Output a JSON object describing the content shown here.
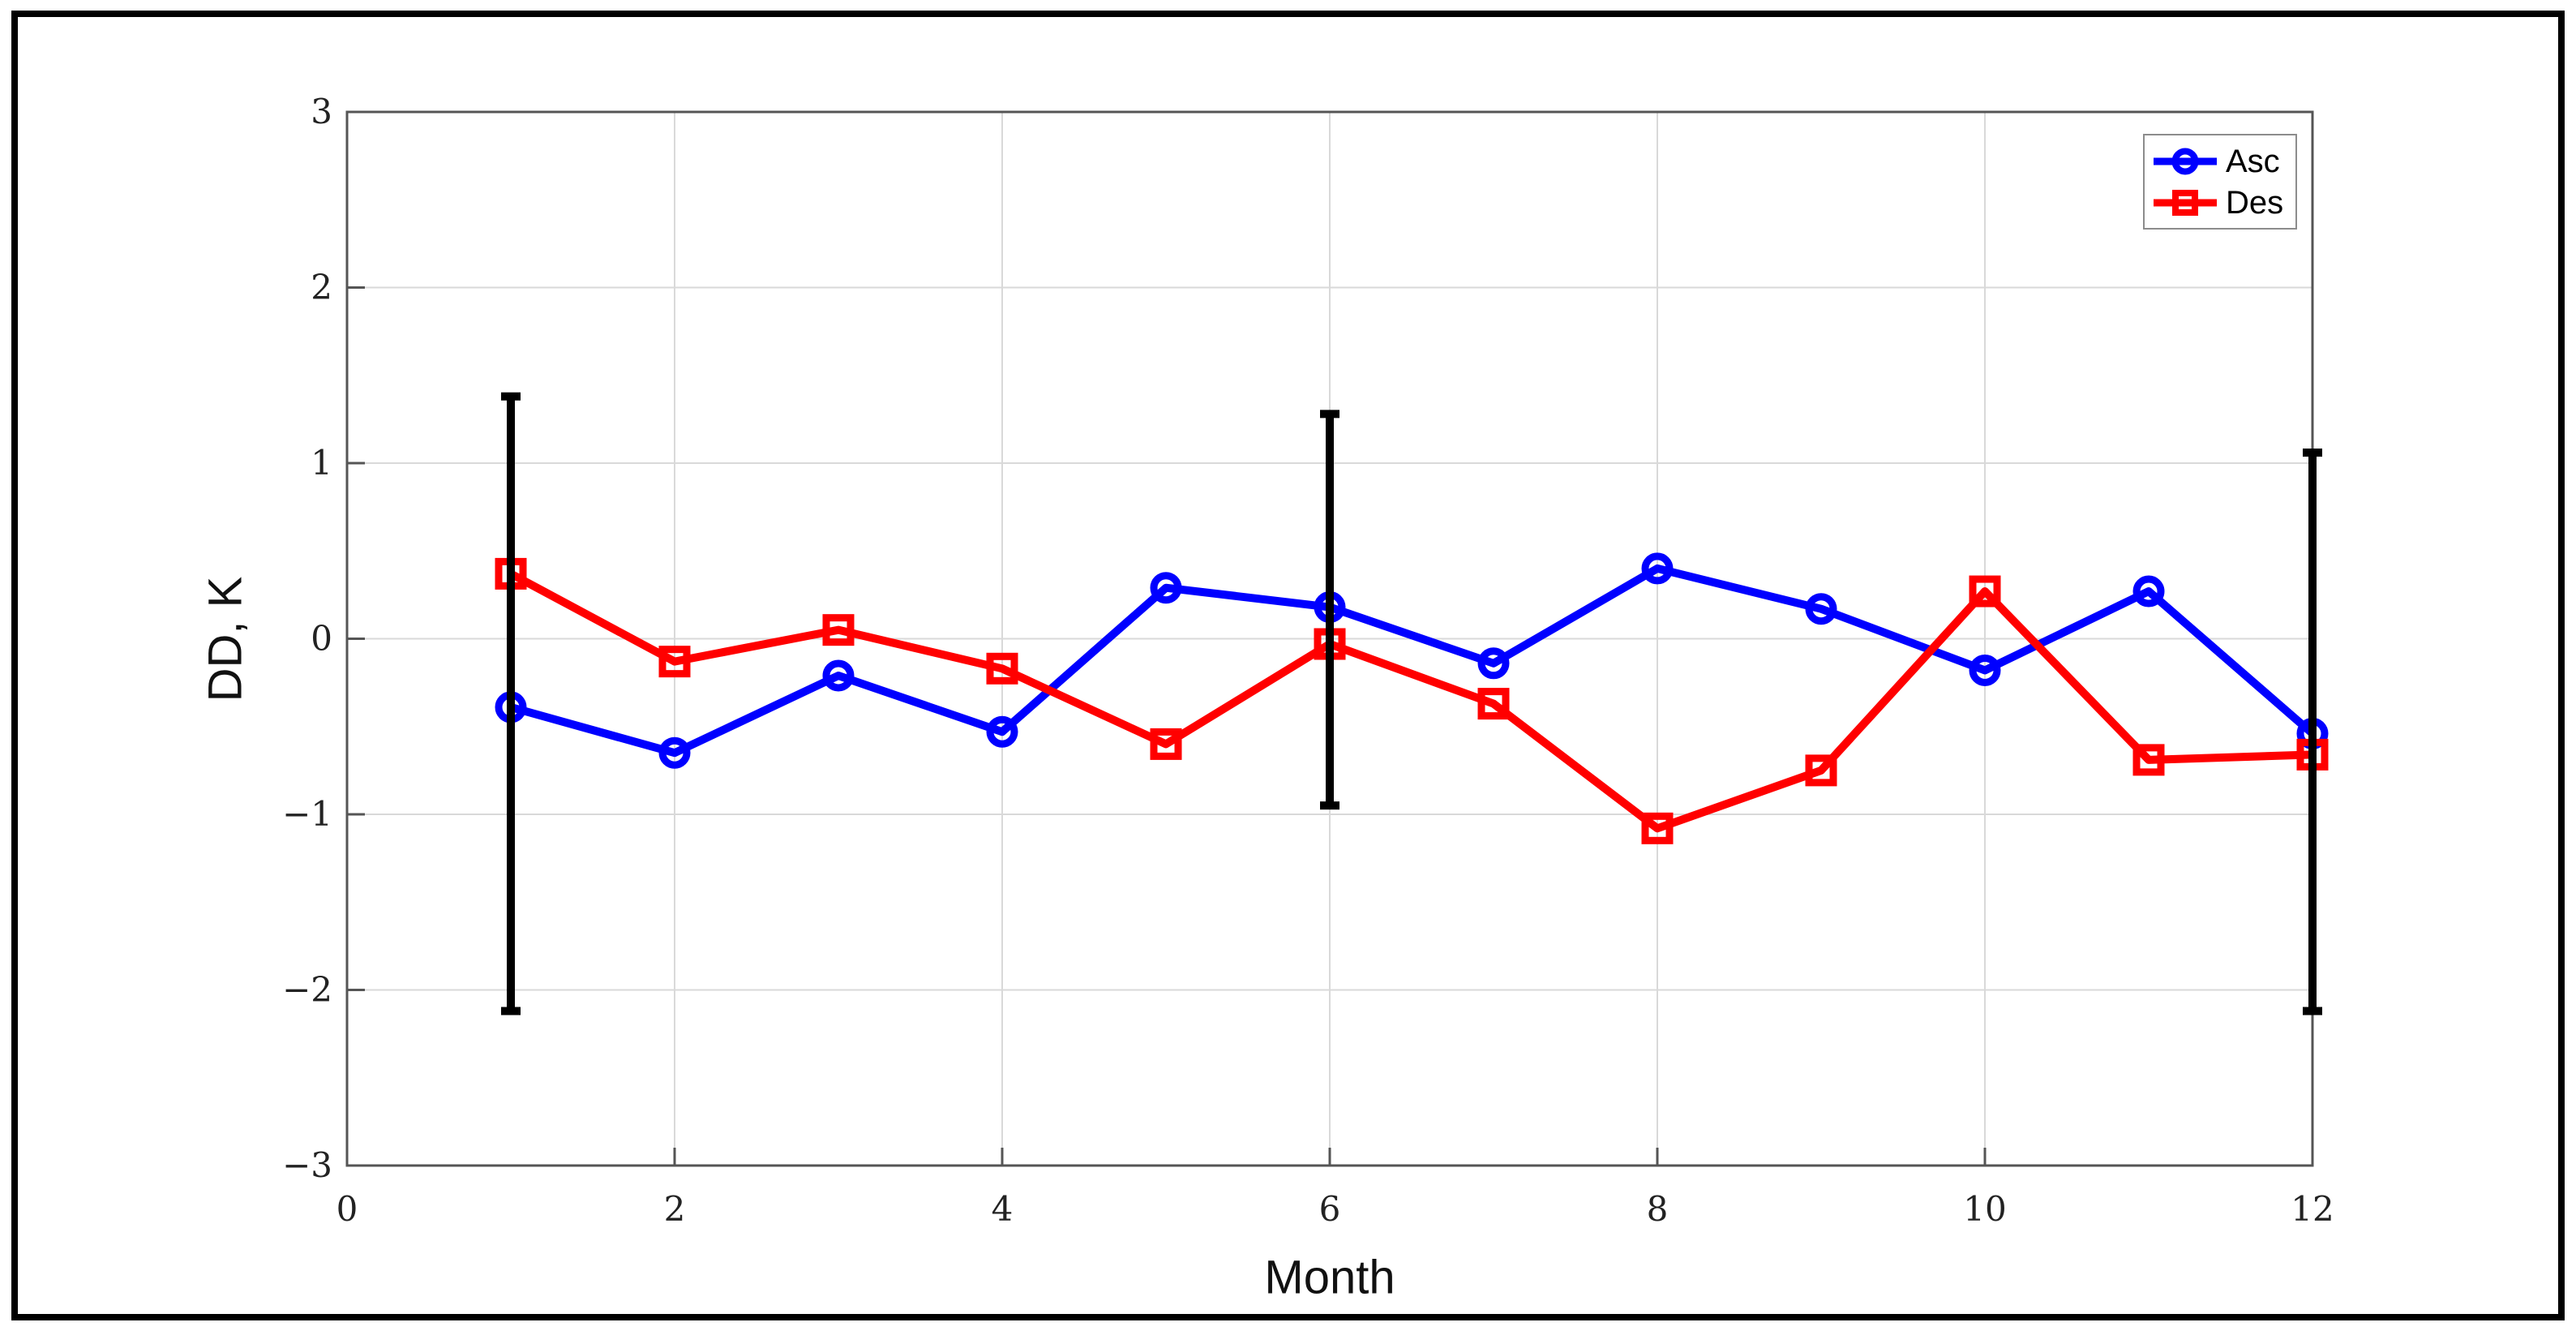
{
  "chart_data": {
    "type": "line",
    "title": "",
    "xlabel": "Month",
    "ylabel": "DD, K",
    "xlim": [
      0,
      12
    ],
    "ylim": [
      -3,
      3
    ],
    "xticks": [
      0,
      2,
      4,
      6,
      8,
      10,
      12
    ],
    "yticks": [
      -3,
      -2,
      -1,
      0,
      1,
      2,
      3
    ],
    "grid": true,
    "legend_position": "top-right",
    "x": [
      1,
      2,
      3,
      4,
      5,
      6,
      7,
      8,
      9,
      10,
      11,
      12
    ],
    "series": [
      {
        "name": "Asc",
        "color": "#0000ff",
        "marker": "circle",
        "values": [
          -0.39,
          -0.65,
          -0.21,
          -0.53,
          0.29,
          0.18,
          -0.14,
          0.4,
          0.17,
          -0.18,
          0.27,
          -0.54
        ]
      },
      {
        "name": "Des",
        "color": "#ff0000",
        "marker": "square",
        "values": [
          0.37,
          -0.13,
          0.05,
          -0.17,
          -0.6,
          -0.03,
          -0.37,
          -1.08,
          -0.75,
          0.27,
          -0.69,
          -0.66
        ]
      }
    ],
    "error_bars": {
      "color": "#000000",
      "points": [
        {
          "x": 1,
          "high": 1.38,
          "low": -2.12
        },
        {
          "x": 6,
          "high": 1.28,
          "low": -0.95
        },
        {
          "x": 12,
          "high": 1.06,
          "low": -2.12
        }
      ]
    },
    "colors": {
      "grid": "#d9d9d9",
      "axis": "#555555",
      "tick_label": "#222222",
      "frame": "#000000"
    }
  }
}
